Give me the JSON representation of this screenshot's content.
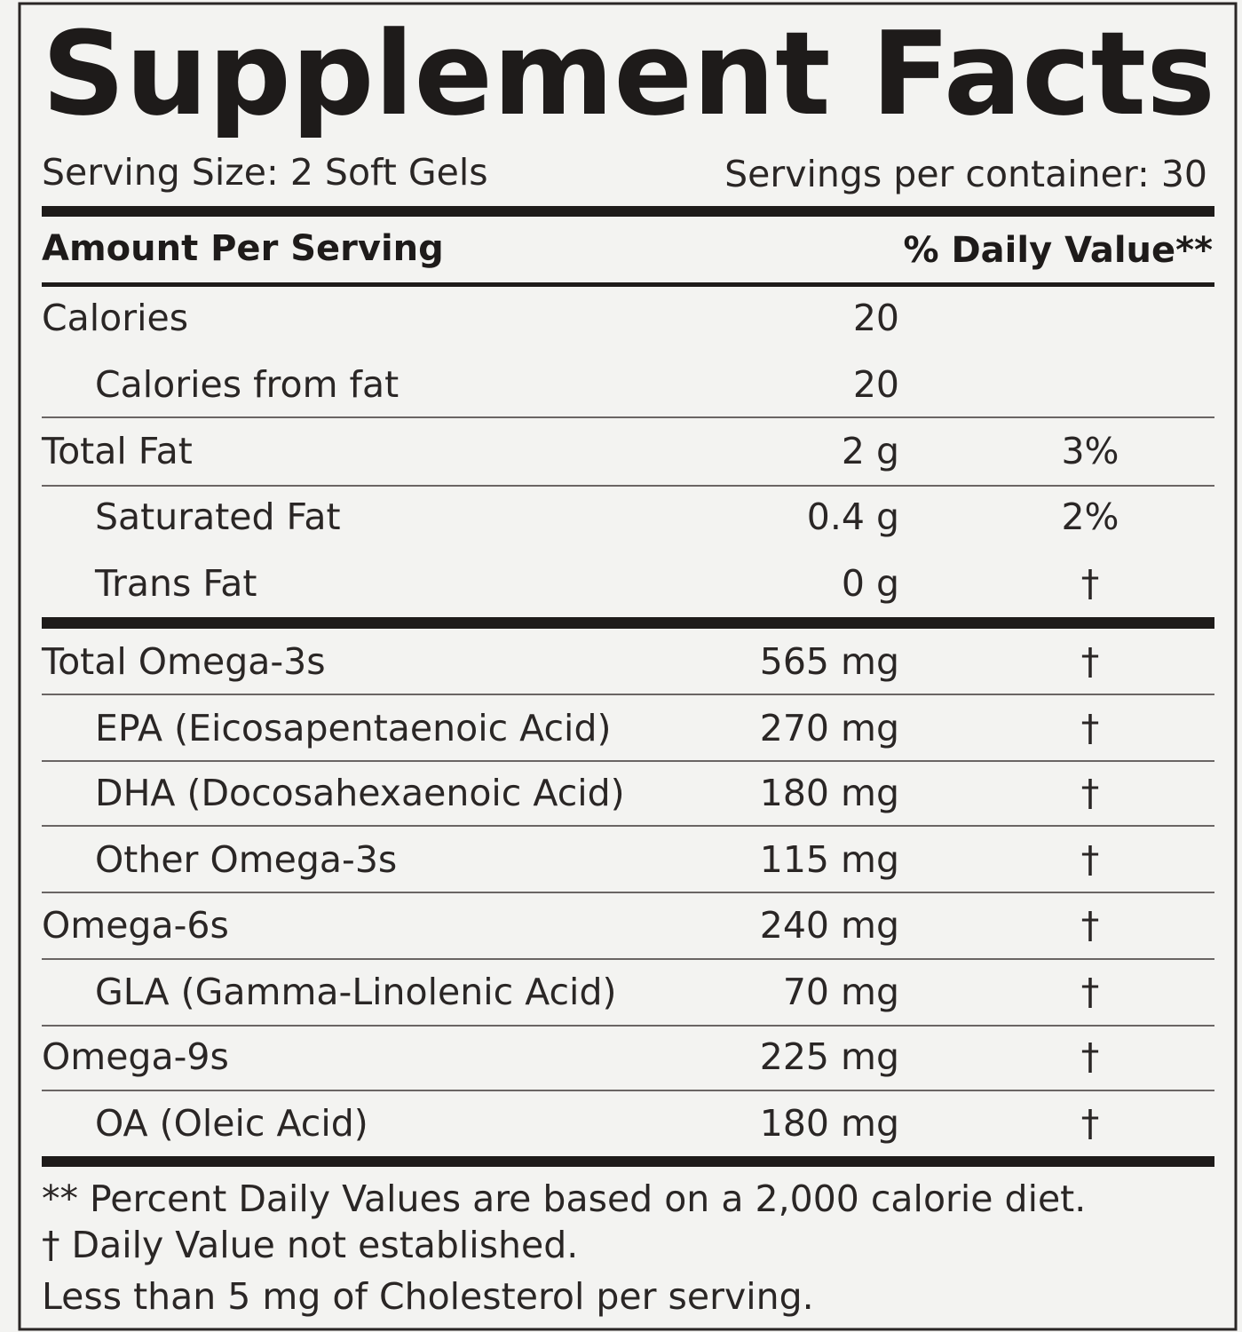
{
  "title": "Supplement Facts",
  "serving_size": "Serving Size: 2 Soft Gels",
  "servings_per_container": "Servings per container: 30",
  "header": {
    "amount": "Amount Per Serving",
    "daily_value": "% Daily Value**"
  },
  "rows": [
    {
      "label": "Calories",
      "amount": "20"
    },
    {
      "label": "Calories from fat",
      "amount": "20"
    },
    {
      "label": "Total Fat",
      "amount": "2 g",
      "daily_value": "3%"
    },
    {
      "label": "Saturated Fat",
      "amount": "0.4 g",
      "daily_value": "2%"
    },
    {
      "label": "Trans Fat",
      "amount": "0 g",
      "daily_value": "†"
    },
    {
      "label": "Total Omega-3s",
      "amount": "565 mg",
      "daily_value": "†"
    },
    {
      "label": "EPA (Eicosapentaenoic Acid)",
      "amount": "270 mg",
      "daily_value": "†"
    },
    {
      "label": "DHA (Docosahexaenoic Acid)",
      "amount": "180 mg",
      "daily_value": "†"
    },
    {
      "label": "Other Omega-3s",
      "amount": "115 mg",
      "daily_value": "†"
    },
    {
      "label": "Omega-6s",
      "amount": "240 mg",
      "daily_value": "†"
    },
    {
      "label": "GLA (Gamma-Linolenic Acid)",
      "amount": "70 mg",
      "daily_value": "†"
    },
    {
      "label": "Omega-9s",
      "amount": "225 mg",
      "daily_value": "†"
    },
    {
      "label": "OA (Oleic Acid)",
      "amount": "180 mg",
      "daily_value": "†"
    }
  ],
  "footnotes": [
    "** Percent Daily Values are based on a 2,000 calorie diet.",
    "† Daily Value not established.",
    "Less than 5 mg of Cholesterol per serving."
  ]
}
